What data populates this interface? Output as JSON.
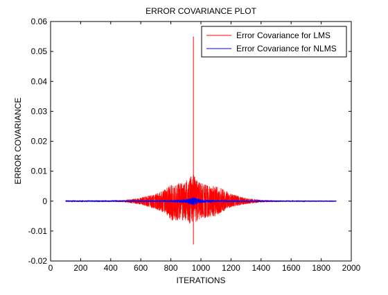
{
  "chart_data": {
    "type": "line",
    "title": "ERROR COVARIANCE PLOT",
    "xlabel": "ITERATIONS",
    "ylabel": "ERROR COVARIANCE",
    "xlim": [
      0,
      2000
    ],
    "ylim": [
      -0.02,
      0.06
    ],
    "xticks": [
      "0",
      "200",
      "400",
      "600",
      "800",
      "1000",
      "1200",
      "1400",
      "1600",
      "1800",
      "2000"
    ],
    "yticks": [
      "-0.02",
      "-0.01",
      "0",
      "0.01",
      "0.02",
      "0.03",
      "0.04",
      "0.05",
      "0.06"
    ],
    "grid": false,
    "legend_position": "top-right",
    "series": [
      {
        "name": "Error Covariance for LMS",
        "color": "#ff0000",
        "x_range": [
          100,
          1900
        ],
        "baseline": 0,
        "envelope_x": [
          100,
          400,
          500,
          600,
          700,
          760,
          800,
          850,
          900,
          930,
          950,
          970,
          1000,
          1050,
          1100,
          1150,
          1200,
          1300,
          1400,
          1500,
          1900
        ],
        "envelope_upper": [
          0.0002,
          0.0002,
          0.0004,
          0.0012,
          0.0025,
          0.004,
          0.0055,
          0.006,
          0.007,
          0.0085,
          0.009,
          0.0075,
          0.006,
          0.0055,
          0.005,
          0.004,
          0.0025,
          0.001,
          0.0004,
          0.0002,
          0.0001
        ],
        "envelope_lower": [
          -0.0002,
          -0.0002,
          -0.0004,
          -0.0012,
          -0.0028,
          -0.004,
          -0.0065,
          -0.0068,
          -0.007,
          -0.0075,
          -0.008,
          -0.007,
          -0.006,
          -0.0055,
          -0.005,
          -0.0035,
          -0.002,
          -0.001,
          -0.0004,
          -0.0002,
          -0.0001
        ],
        "spike": {
          "x": 950,
          "max": 0.055,
          "min": -0.0145
        }
      },
      {
        "name": "Error Covariance for NLMS",
        "color": "#0000ff",
        "x_range": [
          100,
          1900
        ],
        "baseline": 0,
        "envelope_x": [
          100,
          600,
          800,
          900,
          940,
          950,
          960,
          1000,
          1100,
          1300,
          1900
        ],
        "envelope_upper": [
          0.0002,
          0.0002,
          0.0003,
          0.0006,
          0.0012,
          0.0015,
          0.0012,
          0.0006,
          0.0003,
          0.0002,
          0.0001
        ],
        "envelope_lower": [
          -0.0002,
          -0.0002,
          -0.0003,
          -0.0006,
          -0.0012,
          -0.0015,
          -0.0012,
          -0.0006,
          -0.0003,
          -0.0002,
          -0.0001
        ]
      }
    ]
  }
}
